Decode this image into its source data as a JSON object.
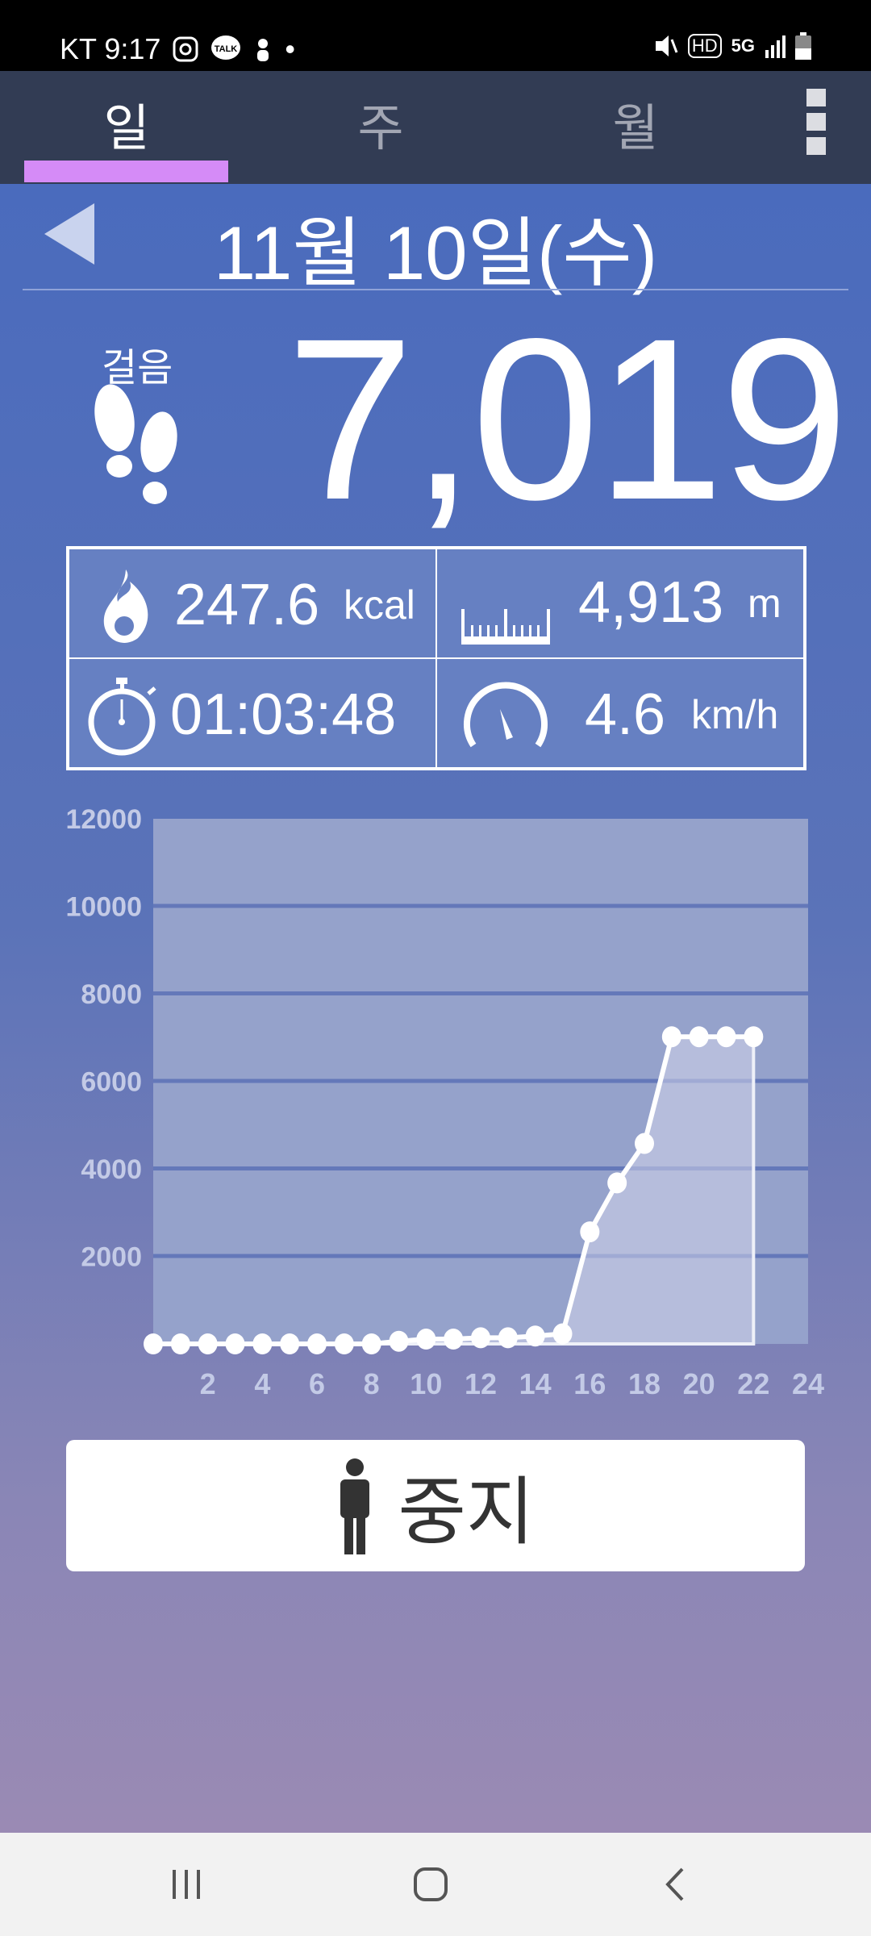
{
  "status_bar": {
    "carrier_time": "KT 9:17",
    "icons": [
      "instagram-icon",
      "kakaotalk-icon",
      "app-icon",
      "dot-icon"
    ],
    "right_icons": [
      "mute-icon",
      "hd-voice-icon",
      "5g-icon",
      "signal-icon",
      "battery-icon"
    ],
    "talk": "TALK",
    "hd": "HD",
    "net": "5G"
  },
  "tabs": [
    {
      "label": "일",
      "active": true
    },
    {
      "label": "주",
      "active": false
    },
    {
      "label": "월",
      "active": false
    }
  ],
  "header": {
    "date": "11월 10일(수)"
  },
  "steps": {
    "label": "걸음",
    "value": "7,019"
  },
  "stats": {
    "calories": {
      "value": "247.6",
      "unit": "kcal"
    },
    "distance": {
      "value": "4,913",
      "unit": "m"
    },
    "duration": {
      "value": "01:03:48"
    },
    "speed": {
      "value": "4.6",
      "unit": "km/h"
    }
  },
  "chart_data": {
    "type": "area",
    "x": [
      0,
      1,
      2,
      3,
      4,
      5,
      6,
      7,
      8,
      9,
      10,
      11,
      12,
      13,
      14,
      15,
      16,
      17,
      18,
      19,
      20,
      21,
      22
    ],
    "values": [
      0,
      0,
      0,
      0,
      0,
      0,
      0,
      0,
      0,
      60,
      110,
      110,
      140,
      140,
      180,
      230,
      2560,
      3680,
      4580,
      7019,
      7019,
      7019,
      7019
    ],
    "ylim": [
      0,
      12000
    ],
    "xlim": [
      0,
      24
    ],
    "yticks": [
      2000,
      4000,
      6000,
      8000,
      10000,
      12000
    ],
    "xticks": [
      2,
      4,
      6,
      8,
      10,
      12,
      14,
      16,
      18,
      20,
      22,
      24
    ],
    "grid": true
  },
  "button": {
    "label": "중지",
    "icon": "person-icon"
  },
  "colors": {
    "tab_indicator": "#d58bf7",
    "tab_bar": "#323c54"
  }
}
